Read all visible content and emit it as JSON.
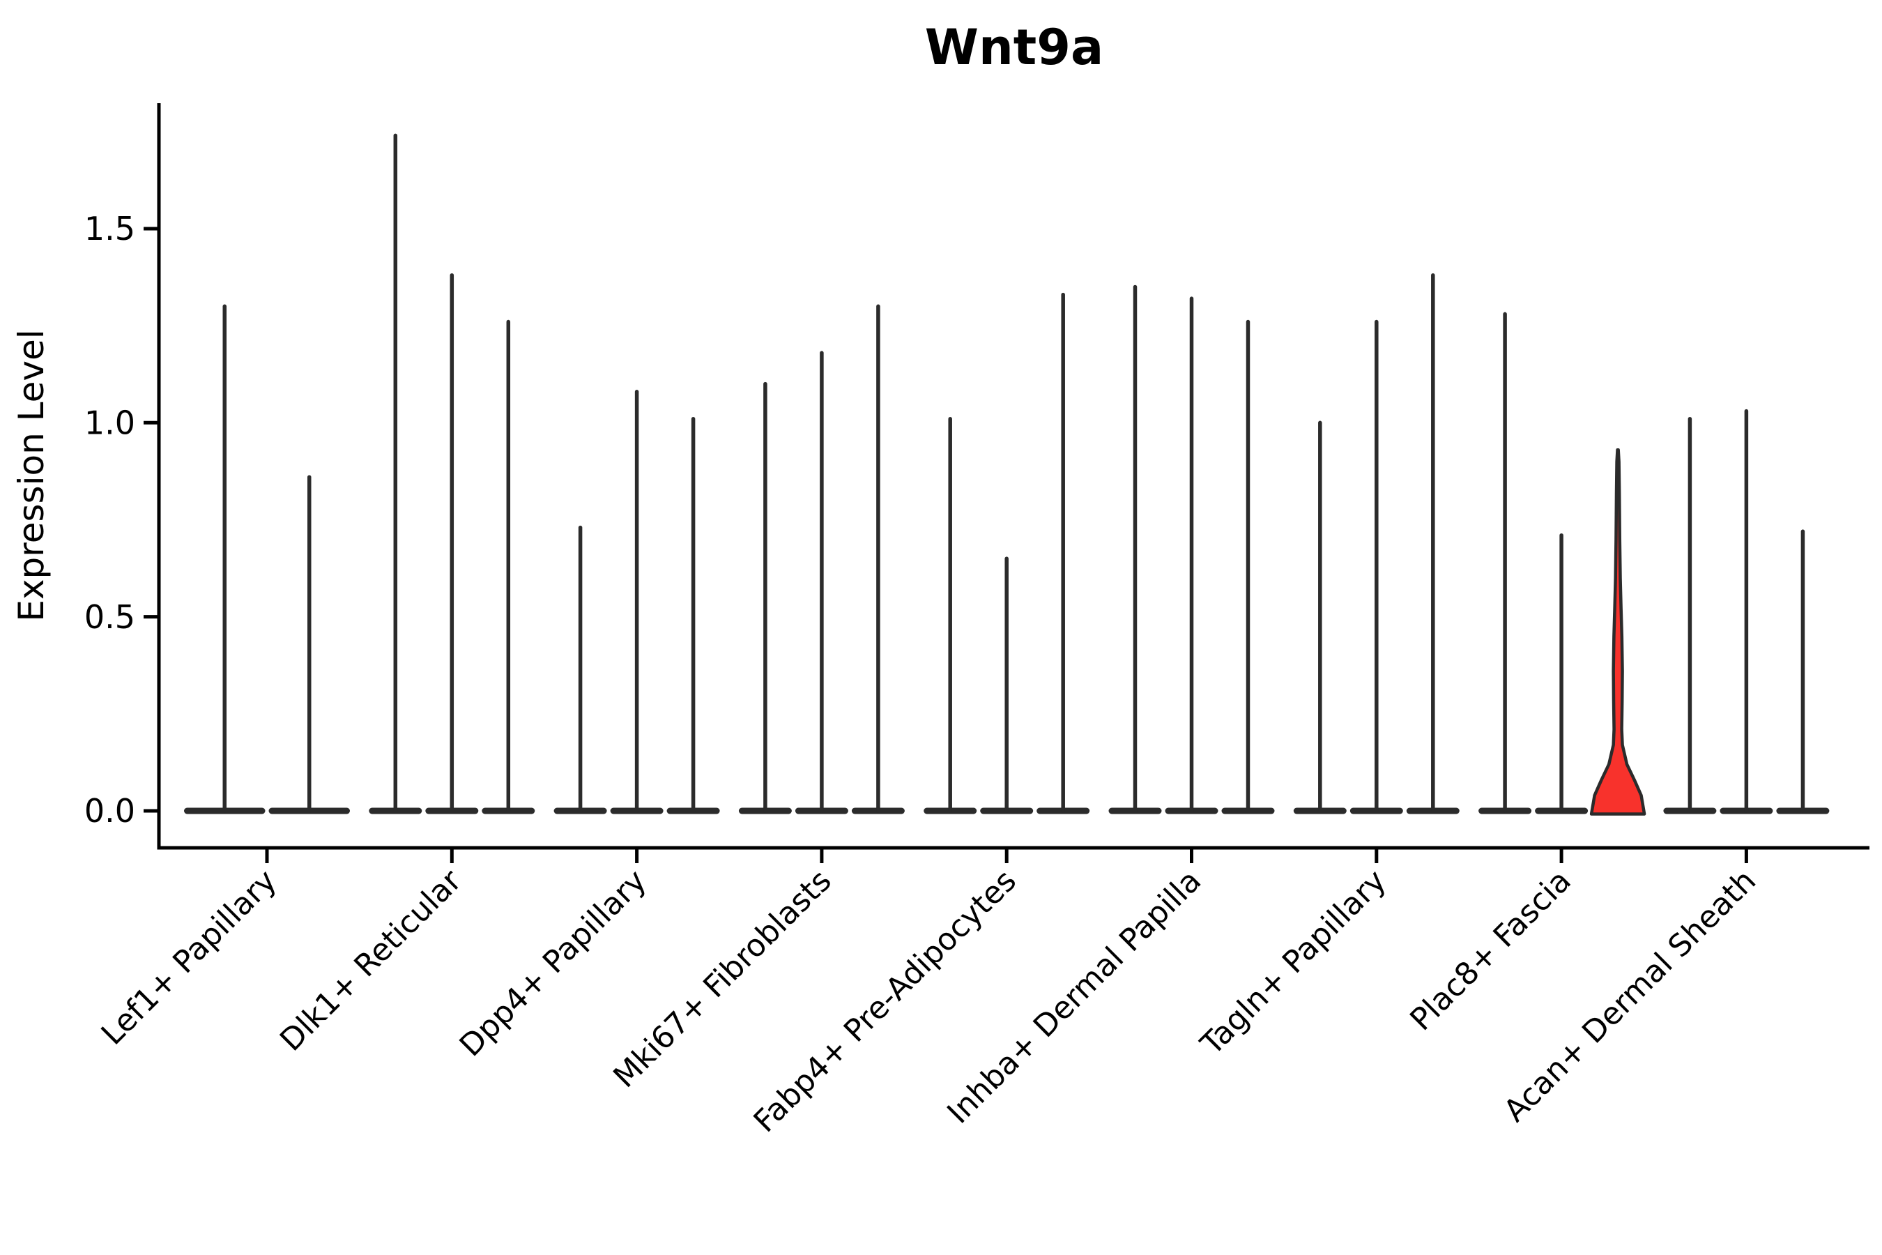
{
  "chart_data": {
    "type": "violin",
    "title": "Wnt9a",
    "ylabel": "Expression Level",
    "xlabel": "",
    "yticks": [
      0.0,
      0.5,
      1.0,
      1.5
    ],
    "ylim": [
      -0.06,
      1.82
    ],
    "grid": false,
    "legend": "none",
    "categories": [
      "Lef1+ Papillary",
      "Dlk1+ Reticular",
      "Dpp4+ Papillary",
      "Mki67+ Fibroblasts",
      "Fabp4+ Pre-Adipocytes",
      "Inhba+ Dermal Papilla",
      "Tagln+ Papillary",
      "Plac8+ Fascia",
      "Acan+ Dermal Sheath"
    ],
    "groups": [
      {
        "category": "Lef1+ Papillary",
        "violins": [
          {
            "max": 1.3
          },
          {
            "max": 0.86
          }
        ]
      },
      {
        "category": "Dlk1+ Reticular",
        "violins": [
          {
            "max": 1.74
          },
          {
            "max": 1.38
          },
          {
            "max": 1.26
          }
        ]
      },
      {
        "category": "Dpp4+ Papillary",
        "violins": [
          {
            "max": 0.73
          },
          {
            "max": 1.08
          },
          {
            "max": 1.01
          }
        ]
      },
      {
        "category": "Mki67+ Fibroblasts",
        "violins": [
          {
            "max": 1.1
          },
          {
            "max": 1.18
          },
          {
            "max": 1.3
          }
        ]
      },
      {
        "category": "Fabp4+ Pre-Adipocytes",
        "violins": [
          {
            "max": 1.01
          },
          {
            "max": 0.65
          },
          {
            "max": 1.33
          }
        ]
      },
      {
        "category": "Inhba+ Dermal Papilla",
        "violins": [
          {
            "max": 1.35
          },
          {
            "max": 1.32
          },
          {
            "max": 1.26
          }
        ]
      },
      {
        "category": "Tagln+ Papillary",
        "violins": [
          {
            "max": 1.0
          },
          {
            "max": 1.26
          },
          {
            "max": 1.38
          }
        ]
      },
      {
        "category": "Plac8+ Fascia",
        "violins": [
          {
            "max": 1.28
          },
          {
            "max": 0.71
          },
          {
            "max": 0.93,
            "highlight": true,
            "profile": [
              [
                0.0,
                1.0
              ],
              [
                0.04,
                0.88
              ],
              [
                0.08,
                0.62
              ],
              [
                0.12,
                0.34
              ],
              [
                0.17,
                0.17
              ],
              [
                0.21,
                0.145
              ],
              [
                0.28,
                0.16
              ],
              [
                0.36,
                0.17
              ],
              [
                0.45,
                0.15
              ],
              [
                0.52,
                0.12
              ],
              [
                0.6,
                0.09
              ],
              [
                0.7,
                0.07
              ],
              [
                0.82,
                0.055
              ],
              [
                0.9,
                0.04
              ],
              [
                0.93,
                0.015
              ]
            ]
          }
        ]
      },
      {
        "category": "Acan+ Dermal Sheath",
        "violins": [
          {
            "max": 1.01
          },
          {
            "max": 1.03
          },
          {
            "max": 0.72
          }
        ]
      }
    ],
    "style": {
      "violin_line_color": "#2b2b2b",
      "axis_color": "#000000",
      "highlight_fill": "#f8322c",
      "background": "#ffffff"
    }
  }
}
